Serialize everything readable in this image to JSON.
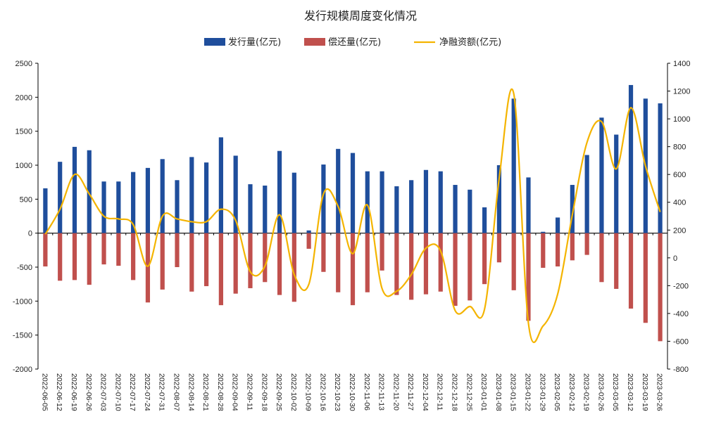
{
  "chart_data": {
    "type": "bar",
    "title": "发行规模周度变化情况",
    "legend_position": "top-center",
    "grid": false,
    "categories": [
      "2022-06-05",
      "2022-06-12",
      "2022-06-19",
      "2022-06-26",
      "2022-07-03",
      "2022-07-10",
      "2022-07-17",
      "2022-07-24",
      "2022-07-31",
      "2022-08-07",
      "2022-08-14",
      "2022-08-21",
      "2022-08-28",
      "2022-09-04",
      "2022-09-11",
      "2022-09-18",
      "2022-09-25",
      "2022-10-02",
      "2022-10-09",
      "2022-10-16",
      "2022-10-23",
      "2022-10-30",
      "2022-11-06",
      "2022-11-13",
      "2022-11-20",
      "2022-11-27",
      "2022-12-04",
      "2022-12-11",
      "2022-12-18",
      "2022-12-25",
      "2023-01-01",
      "2023-01-08",
      "2023-01-15",
      "2023-01-22",
      "2023-01-29",
      "2023-02-05",
      "2023-02-12",
      "2023-02-19",
      "2023-02-26",
      "2023-03-05",
      "2023-03-12",
      "2023-03-19",
      "2023-03-26"
    ],
    "y_left_range": [
      -2000,
      2500
    ],
    "y_left_ticks": [
      "2500",
      "2000",
      "1500",
      "1000",
      "500",
      "0",
      "-500",
      "-1000",
      "-1500",
      "-2000"
    ],
    "y_right_range": [
      -800,
      1400
    ],
    "y_right_ticks": [
      "1400",
      "1200",
      "1000",
      "800",
      "600",
      "400",
      "200",
      "0",
      "-200",
      "-400",
      "-600",
      "-800"
    ],
    "series": [
      {
        "name": "发行量(亿元)",
        "type": "bar",
        "axis": "left",
        "color": "#1f4e9c",
        "values": [
          660,
          1050,
          1270,
          1220,
          760,
          760,
          900,
          960,
          1090,
          780,
          1120,
          1040,
          1410,
          1140,
          720,
          700,
          1210,
          890,
          40,
          1010,
          1240,
          1180,
          910,
          910,
          690,
          780,
          930,
          910,
          710,
          640,
          380,
          1000,
          1980,
          820,
          20,
          230,
          710,
          1150,
          1700,
          1450,
          2180,
          1980,
          1910
        ]
      },
      {
        "name": "偿还量(亿元)",
        "type": "bar",
        "axis": "left",
        "color": "#c0504d",
        "values": [
          -490,
          -700,
          -690,
          -760,
          -460,
          -480,
          -690,
          -1020,
          -830,
          -500,
          -860,
          -780,
          -1060,
          -890,
          -810,
          -720,
          -910,
          -1010,
          -230,
          -570,
          -870,
          -1060,
          -870,
          -550,
          -910,
          -980,
          -900,
          -860,
          -1070,
          -990,
          -750,
          -430,
          -840,
          -1290,
          -510,
          -490,
          -400,
          -320,
          -720,
          -820,
          -1110,
          -1320,
          -1590
        ]
      },
      {
        "name": "净融资额(亿元)",
        "type": "line",
        "axis": "right",
        "color": "#f4b400",
        "values": [
          170,
          350,
          600,
          460,
          300,
          280,
          240,
          -60,
          300,
          280,
          260,
          260,
          350,
          270,
          -100,
          -60,
          310,
          -120,
          -190,
          460,
          370,
          30,
          380,
          -220,
          -240,
          -120,
          70,
          50,
          -380,
          -350,
          -370,
          570,
          1180,
          -470,
          -490,
          -260,
          310,
          830,
          980,
          640,
          1080,
          660,
          330
        ]
      }
    ]
  }
}
